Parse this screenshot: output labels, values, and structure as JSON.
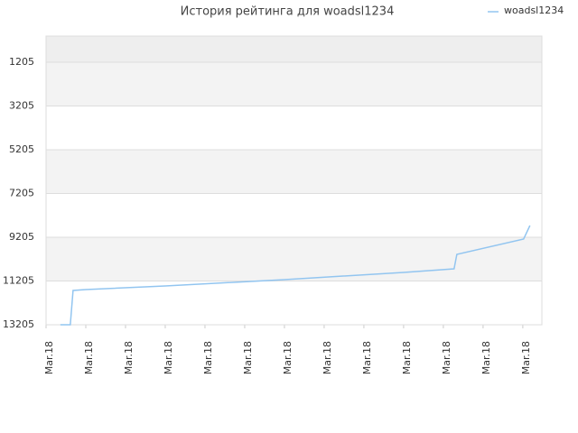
{
  "chart_data": {
    "type": "line",
    "title": "История рейтинга для woadsl1234",
    "x": [
      0.36,
      0.61,
      0.68,
      1.0,
      3.0,
      6.0,
      9.0,
      10.27,
      10.34,
      12.02,
      12.18
    ],
    "series": [
      {
        "name": "woadsl1234",
        "color": "#92c5f0",
        "values": [
          13205,
          13205,
          11638,
          11597,
          11432,
          11143,
          10813,
          10648,
          9988,
          9287,
          8669
        ]
      }
    ],
    "xlim": [
      0,
      12.48
    ],
    "xticks": [
      {
        "value": 0,
        "label": "Mar.18"
      },
      {
        "value": 1,
        "label": "Mar.18"
      },
      {
        "value": 2,
        "label": "Mar.18"
      },
      {
        "value": 3,
        "label": "Mar.18"
      },
      {
        "value": 4,
        "label": "Mar.18"
      },
      {
        "value": 5,
        "label": "Mar.18"
      },
      {
        "value": 6,
        "label": "Mar.18"
      },
      {
        "value": 7,
        "label": "Mar.18"
      },
      {
        "value": 8,
        "label": "Mar.18"
      },
      {
        "value": 9,
        "label": "Mar.18"
      },
      {
        "value": 10,
        "label": "Mar.18"
      },
      {
        "value": 11,
        "label": "Mar.18"
      },
      {
        "value": 12,
        "label": "Mar.18"
      }
    ],
    "ylim": [
      13205,
      9
    ],
    "yticks": [
      1205,
      3205,
      5205,
      7205,
      9205,
      11205,
      13205
    ],
    "grid": true,
    "legend": "top-right"
  }
}
